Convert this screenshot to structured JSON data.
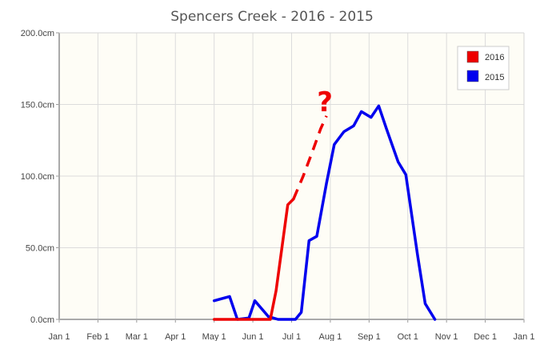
{
  "chart_data": {
    "type": "line",
    "title": "Spencers Creek - 2016 - 2015",
    "xlabel": "",
    "ylabel": "",
    "x_ticks": [
      "Jan 1",
      "Feb 1",
      "Mar 1",
      "Apr 1",
      "May 1",
      "Jun 1",
      "Jul 1",
      "Aug 1",
      "Sep 1",
      "Oct 1",
      "Nov 1",
      "Dec 1",
      "Jan 1"
    ],
    "y_ticks": [
      "0.0cm",
      "50.0cm",
      "100.0cm",
      "150.0cm",
      "200.0cm"
    ],
    "xlim": [
      0,
      12
    ],
    "ylim": [
      0,
      200
    ],
    "grid": true,
    "legend_position": "top-right",
    "series": [
      {
        "name": "2016",
        "color": "#ee0000",
        "points": [
          [
            4.0,
            0
          ],
          [
            4.75,
            0
          ],
          [
            5.45,
            0
          ],
          [
            5.6,
            20
          ],
          [
            5.75,
            50
          ],
          [
            5.9,
            80
          ],
          [
            6.05,
            84
          ]
        ],
        "projection": [
          [
            6.05,
            84
          ],
          [
            6.3,
            100
          ],
          [
            6.55,
            118
          ],
          [
            6.75,
            133
          ],
          [
            6.9,
            142
          ]
        ],
        "annotation": "?"
      },
      {
        "name": "2015",
        "color": "#0000ee",
        "points": [
          [
            4.0,
            13
          ],
          [
            4.4,
            16
          ],
          [
            4.6,
            0
          ],
          [
            4.9,
            1
          ],
          [
            5.05,
            13
          ],
          [
            5.4,
            2
          ],
          [
            5.65,
            0
          ],
          [
            6.1,
            0
          ],
          [
            6.25,
            5
          ],
          [
            6.45,
            55
          ],
          [
            6.65,
            58
          ],
          [
            6.9,
            95
          ],
          [
            7.1,
            122
          ],
          [
            7.35,
            131
          ],
          [
            7.6,
            135
          ],
          [
            7.8,
            145
          ],
          [
            8.05,
            141
          ],
          [
            8.25,
            149
          ],
          [
            8.45,
            133
          ],
          [
            8.75,
            110
          ],
          [
            8.95,
            101
          ],
          [
            9.25,
            45
          ],
          [
            9.45,
            11
          ],
          [
            9.7,
            0
          ]
        ]
      }
    ]
  }
}
